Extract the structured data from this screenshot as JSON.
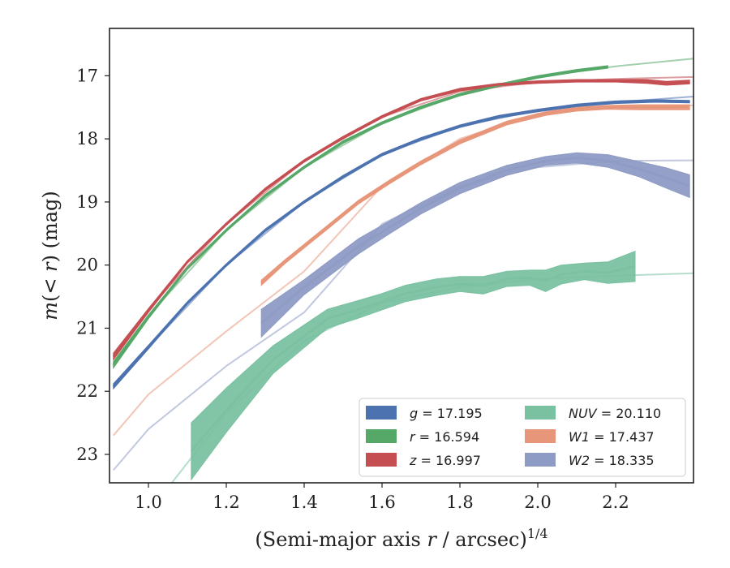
{
  "chart_data": {
    "type": "line",
    "title": "",
    "xlabel": "(Semi-major axis r / arcsec)1/4",
    "xlabel_parts": {
      "prefix": "(Semi-major axis ",
      "var": "r",
      "middle": " / arcsec)",
      "sup": "1/4"
    },
    "ylabel": "m(< r) (mag)",
    "ylabel_parts": {
      "var": "m",
      "lparen": "(",
      "lt": "< ",
      "r": "r",
      "rparen": ")",
      "unit": " (mag)"
    },
    "xlim": [
      0.9,
      2.4
    ],
    "ylim": [
      23.45,
      16.25
    ],
    "y_inverted": true,
    "xticks": [
      "1.0",
      "1.2",
      "1.4",
      "1.6",
      "1.8",
      "2.0",
      "2.2"
    ],
    "xtick_values": [
      1.0,
      1.2,
      1.4,
      1.6,
      1.8,
      2.0,
      2.2
    ],
    "yticks": [
      "17",
      "18",
      "19",
      "20",
      "21",
      "22",
      "23"
    ],
    "ytick_values": [
      17,
      18,
      19,
      20,
      21,
      22,
      23
    ],
    "legend_position": "lower-right",
    "series": [
      {
        "name": "g",
        "legend": "= 17.195",
        "color": "#4C72B0",
        "model": {
          "x": [
            0.91,
            1.0,
            1.2,
            1.4,
            1.6,
            1.8,
            2.0,
            2.2,
            2.4
          ],
          "y": [
            21.95,
            21.3,
            20.0,
            19.0,
            18.25,
            17.8,
            17.55,
            17.42,
            17.33
          ]
        },
        "data": {
          "x": [
            0.91,
            1.0,
            1.1,
            1.2,
            1.3,
            1.4,
            1.5,
            1.6,
            1.7,
            1.8,
            1.9,
            2.0,
            2.1,
            2.2,
            2.3,
            2.39
          ],
          "y": [
            21.92,
            21.3,
            20.6,
            20.0,
            19.45,
            19.0,
            18.6,
            18.25,
            18.0,
            17.8,
            17.65,
            17.55,
            17.47,
            17.42,
            17.4,
            17.41
          ],
          "err": [
            0.04,
            0.03,
            0.02,
            0.02,
            0.02,
            0.02,
            0.02,
            0.02,
            0.02,
            0.02,
            0.02,
            0.02,
            0.02,
            0.02,
            0.02,
            0.02
          ]
        }
      },
      {
        "name": "r",
        "legend": "= 16.594",
        "color": "#55A868",
        "model": {
          "x": [
            0.91,
            1.0,
            1.2,
            1.4,
            1.6,
            1.8,
            2.0,
            2.2,
            2.4
          ],
          "y": [
            21.55,
            20.8,
            19.45,
            18.45,
            17.75,
            17.3,
            17.02,
            16.85,
            16.73
          ]
        },
        "data": {
          "x": [
            0.91,
            1.0,
            1.1,
            1.2,
            1.3,
            1.4,
            1.5,
            1.6,
            1.7,
            1.8,
            1.9,
            2.0,
            2.1,
            2.18
          ],
          "y": [
            21.58,
            20.82,
            20.05,
            19.45,
            18.9,
            18.45,
            18.05,
            17.75,
            17.5,
            17.3,
            17.15,
            17.02,
            16.92,
            16.86
          ],
          "err": [
            0.05,
            0.03,
            0.02,
            0.02,
            0.02,
            0.02,
            0.02,
            0.02,
            0.02,
            0.02,
            0.02,
            0.02,
            0.02,
            0.02
          ]
        }
      },
      {
        "name": "z",
        "legend": "= 16.997",
        "color": "#C44E52",
        "model": {
          "x": [
            0.91,
            1.0,
            1.2,
            1.4,
            1.6,
            1.8,
            2.0,
            2.2,
            2.4
          ],
          "y": [
            21.4,
            20.7,
            19.35,
            18.35,
            17.65,
            17.25,
            17.1,
            17.05,
            17.02
          ]
        },
        "data": {
          "x": [
            0.91,
            1.0,
            1.1,
            1.2,
            1.3,
            1.4,
            1.5,
            1.6,
            1.7,
            1.8,
            1.9,
            2.0,
            2.1,
            2.2,
            2.28,
            2.33,
            2.39
          ],
          "y": [
            21.45,
            20.72,
            19.95,
            19.35,
            18.8,
            18.35,
            17.98,
            17.65,
            17.38,
            17.22,
            17.14,
            17.1,
            17.08,
            17.08,
            17.09,
            17.12,
            17.1
          ],
          "err": [
            0.05,
            0.03,
            0.02,
            0.02,
            0.02,
            0.02,
            0.02,
            0.02,
            0.02,
            0.02,
            0.02,
            0.02,
            0.02,
            0.02,
            0.03,
            0.03,
            0.03
          ]
        }
      },
      {
        "name": "NUV",
        "legend": "= 20.110",
        "color": "#7AC1A1",
        "model": {
          "x": [
            1.06,
            1.2,
            1.4,
            1.6,
            1.8,
            2.0,
            2.2,
            2.4
          ],
          "y": [
            23.45,
            22.35,
            21.2,
            20.6,
            20.35,
            20.22,
            20.17,
            20.13
          ]
        },
        "data": {
          "x": [
            1.11,
            1.2,
            1.32,
            1.46,
            1.54,
            1.6,
            1.66,
            1.74,
            1.8,
            1.86,
            1.92,
            1.98,
            2.02,
            2.06,
            2.12,
            2.18,
            2.25
          ],
          "y": [
            22.95,
            22.3,
            21.5,
            20.85,
            20.7,
            20.58,
            20.45,
            20.35,
            20.3,
            20.32,
            20.22,
            20.2,
            20.25,
            20.15,
            20.1,
            20.12,
            20.02
          ],
          "err": [
            0.45,
            0.35,
            0.22,
            0.15,
            0.14,
            0.13,
            0.13,
            0.13,
            0.12,
            0.14,
            0.12,
            0.12,
            0.17,
            0.15,
            0.13,
            0.17,
            0.24
          ]
        }
      },
      {
        "name": "W1",
        "legend": "= 17.437",
        "color": "#E8967A",
        "model": {
          "x": [
            0.91,
            1.0,
            1.2,
            1.4,
            1.6,
            1.8,
            2.0,
            2.2,
            2.4
          ],
          "y": [
            22.7,
            22.05,
            21.05,
            20.1,
            18.75,
            18.0,
            17.6,
            17.5,
            17.47
          ]
        },
        "data": {
          "x": [
            1.29,
            1.35,
            1.45,
            1.54,
            1.62,
            1.7,
            1.8,
            1.92,
            2.02,
            2.1,
            2.18,
            2.26,
            2.32,
            2.39
          ],
          "y": [
            20.28,
            19.95,
            19.45,
            19.0,
            18.68,
            18.38,
            18.05,
            17.75,
            17.6,
            17.53,
            17.5,
            17.5,
            17.5,
            17.5
          ],
          "err": [
            0.04,
            0.03,
            0.03,
            0.03,
            0.03,
            0.03,
            0.03,
            0.03,
            0.03,
            0.03,
            0.03,
            0.04,
            0.04,
            0.04
          ]
        }
      },
      {
        "name": "W2",
        "legend": "= 18.335",
        "color": "#8E9BC4",
        "model": {
          "x": [
            0.91,
            1.0,
            1.2,
            1.4,
            1.6,
            1.8,
            2.0,
            2.2,
            2.4
          ],
          "y": [
            23.25,
            22.6,
            21.6,
            20.75,
            19.35,
            18.75,
            18.45,
            18.35,
            18.34
          ]
        },
        "data": {
          "x": [
            1.29,
            1.4,
            1.54,
            1.62,
            1.7,
            1.8,
            1.92,
            2.02,
            2.1,
            2.18,
            2.26,
            2.33,
            2.39
          ],
          "y": [
            20.92,
            20.35,
            19.7,
            19.4,
            19.1,
            18.78,
            18.5,
            18.35,
            18.3,
            18.35,
            18.48,
            18.62,
            18.75
          ],
          "err": [
            0.22,
            0.12,
            0.12,
            0.1,
            0.09,
            0.09,
            0.08,
            0.07,
            0.08,
            0.1,
            0.12,
            0.16,
            0.18
          ]
        }
      }
    ]
  }
}
